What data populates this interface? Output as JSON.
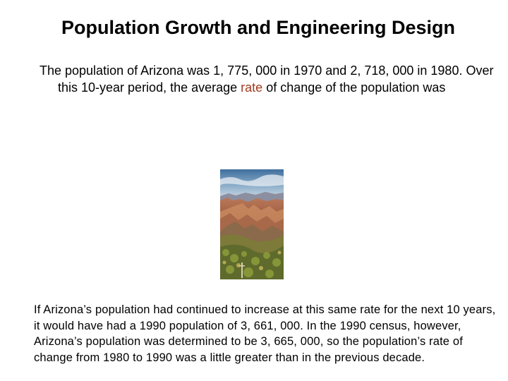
{
  "slide": {
    "title": "Population Growth and Engineering Design",
    "paragraph1": {
      "before": "The population of Arizona was 1, 775, 000 in 1970 and 2, 718, 000 in 1980. Over this 10-year period, the average ",
      "highlight": "rate",
      "after": " of change of the population was"
    },
    "paragraph2": "If Arizona’s population had continued to increase at this same rate for the next 10 years, it would have had a 1990 population of 3, 661, 000. In the 1990 census, however, Arizona’s population was determined to be 3, 665, 000, so the population’s rate of change from 1980 to 1990 was a little greater than in the previous decade."
  },
  "colors": {
    "highlight": "#a33a1e",
    "text": "#000000",
    "background": "#ffffff"
  }
}
